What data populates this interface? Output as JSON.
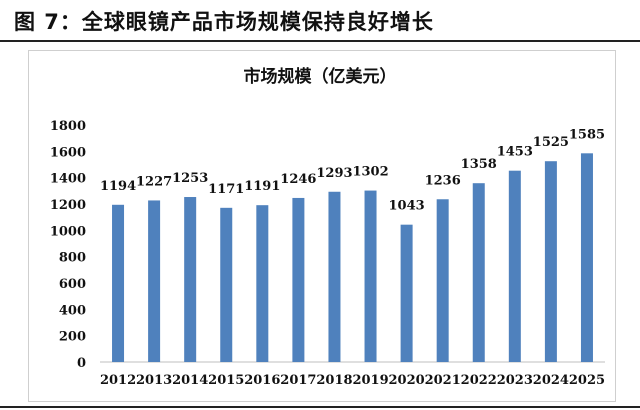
{
  "figure_title": "图 7：全球眼镜产品市场规模保持良好增长",
  "chart_data": {
    "type": "bar",
    "title": "市场规模（亿美元）",
    "xlabel": "",
    "ylabel": "",
    "categories": [
      "2012",
      "2013",
      "2014",
      "2015",
      "2016",
      "2017",
      "2018",
      "2019",
      "2020",
      "2021",
      "2022",
      "2023",
      "2024",
      "2025"
    ],
    "values": [
      1194,
      1227,
      1253,
      1171,
      1191,
      1246,
      1293,
      1302,
      1043,
      1236,
      1358,
      1453,
      1525,
      1585
    ],
    "ylim": [
      0,
      1800
    ],
    "yticks": [
      "0",
      "200",
      "400",
      "600",
      "800",
      "1000",
      "1200",
      "1400",
      "1600",
      "1800"
    ],
    "grid": false,
    "legend": "none",
    "data_labels": true,
    "bar_color": "#4f81bd"
  }
}
